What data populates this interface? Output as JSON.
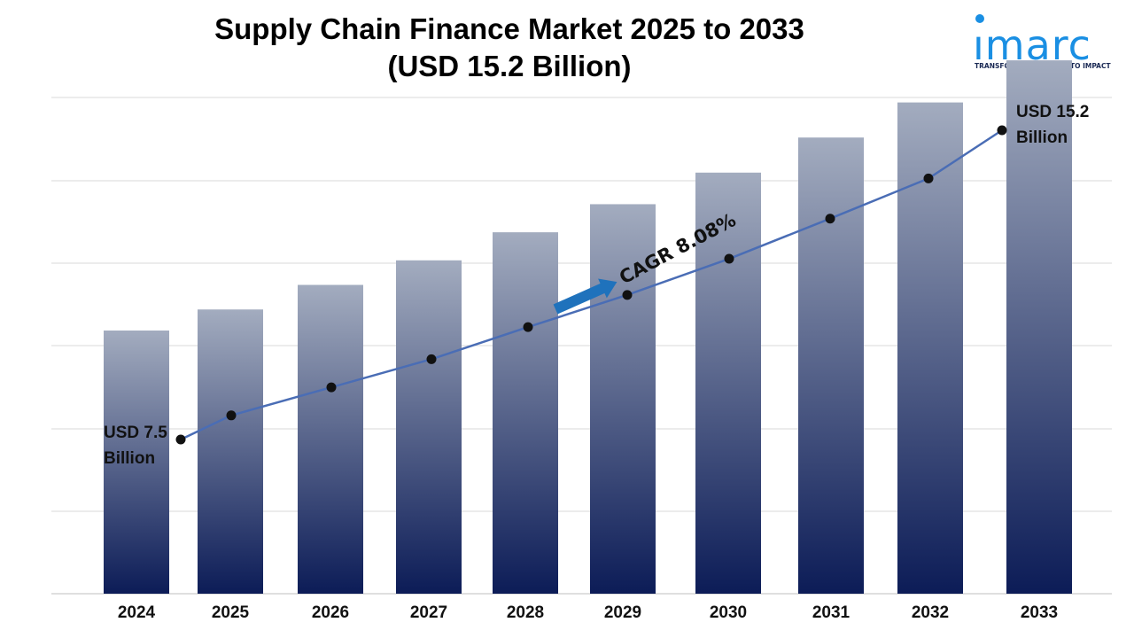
{
  "header": {
    "title_line1": "Supply Chain Finance Market 2025 to 2033",
    "title_line2": "(USD 15.2 Billion)"
  },
  "logo": {
    "word": "ımarc",
    "tagline": "TRANSFORMING IDEAS INTO IMPACT",
    "color": "#1a8fe3"
  },
  "chart_data": {
    "type": "bar",
    "categories": [
      "2024",
      "2025",
      "2026",
      "2027",
      "2028",
      "2029",
      "2030",
      "2031",
      "2032",
      "2033"
    ],
    "series": [
      {
        "values": [
          7.5,
          8.1,
          8.8,
          9.5,
          10.3,
          11.1,
          12.0,
          13.0,
          14.0,
          15.2
        ]
      }
    ],
    "trend_line": {
      "values": [
        7.5,
        8.1,
        8.8,
        9.5,
        10.3,
        11.1,
        12.0,
        13.0,
        14.0,
        15.2
      ],
      "color": "#4a6db5",
      "marker_color": "#111111"
    },
    "annotations": {
      "start_line1": "USD 7.5",
      "start_line2": "Billion",
      "end_line1": "USD 15.2",
      "end_line2": "Billion",
      "cagr": "CAGR 8.08%"
    },
    "bar_color_top": "#a3acbf",
    "bar_color_bottom": "#0c1c57",
    "arrow_color": "#1f72bc",
    "grid": true,
    "ylim": [
      0,
      18
    ]
  }
}
